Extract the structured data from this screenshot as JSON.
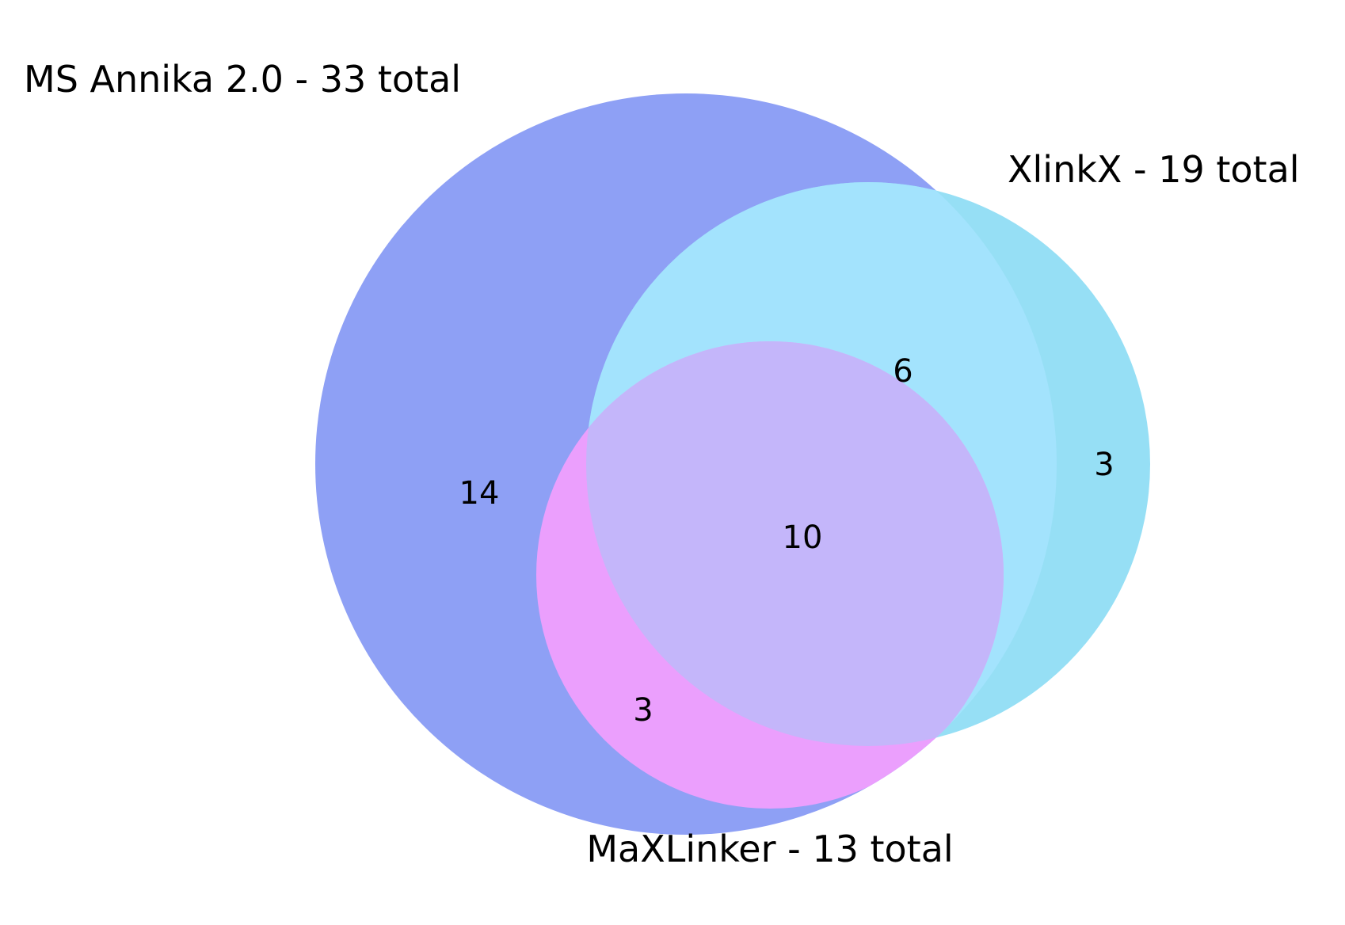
{
  "sets": [
    {
      "id": "ms_annika",
      "label": "MS Annika 2.0 - 33 total",
      "color": "#8ea0f5"
    },
    {
      "id": "xlinkx",
      "label": "XlinkX - 19 total",
      "color": "#96dff5"
    },
    {
      "id": "maxlinker",
      "label": "MaXLinker - 13 total",
      "color": "#eb9ffd"
    }
  ],
  "regions": {
    "ms_annika_only": "14",
    "xlinkx_only": "3",
    "ms_annika_xlinkx": "6",
    "ms_annika_maxlinker": "3",
    "all_three": "10"
  },
  "overlap_colors": {
    "ms_annika_xlinkx": "#a3e3fd",
    "all_three": "#c4b6fa",
    "ms_annika_maxlinker": "#eb9ffd"
  }
}
